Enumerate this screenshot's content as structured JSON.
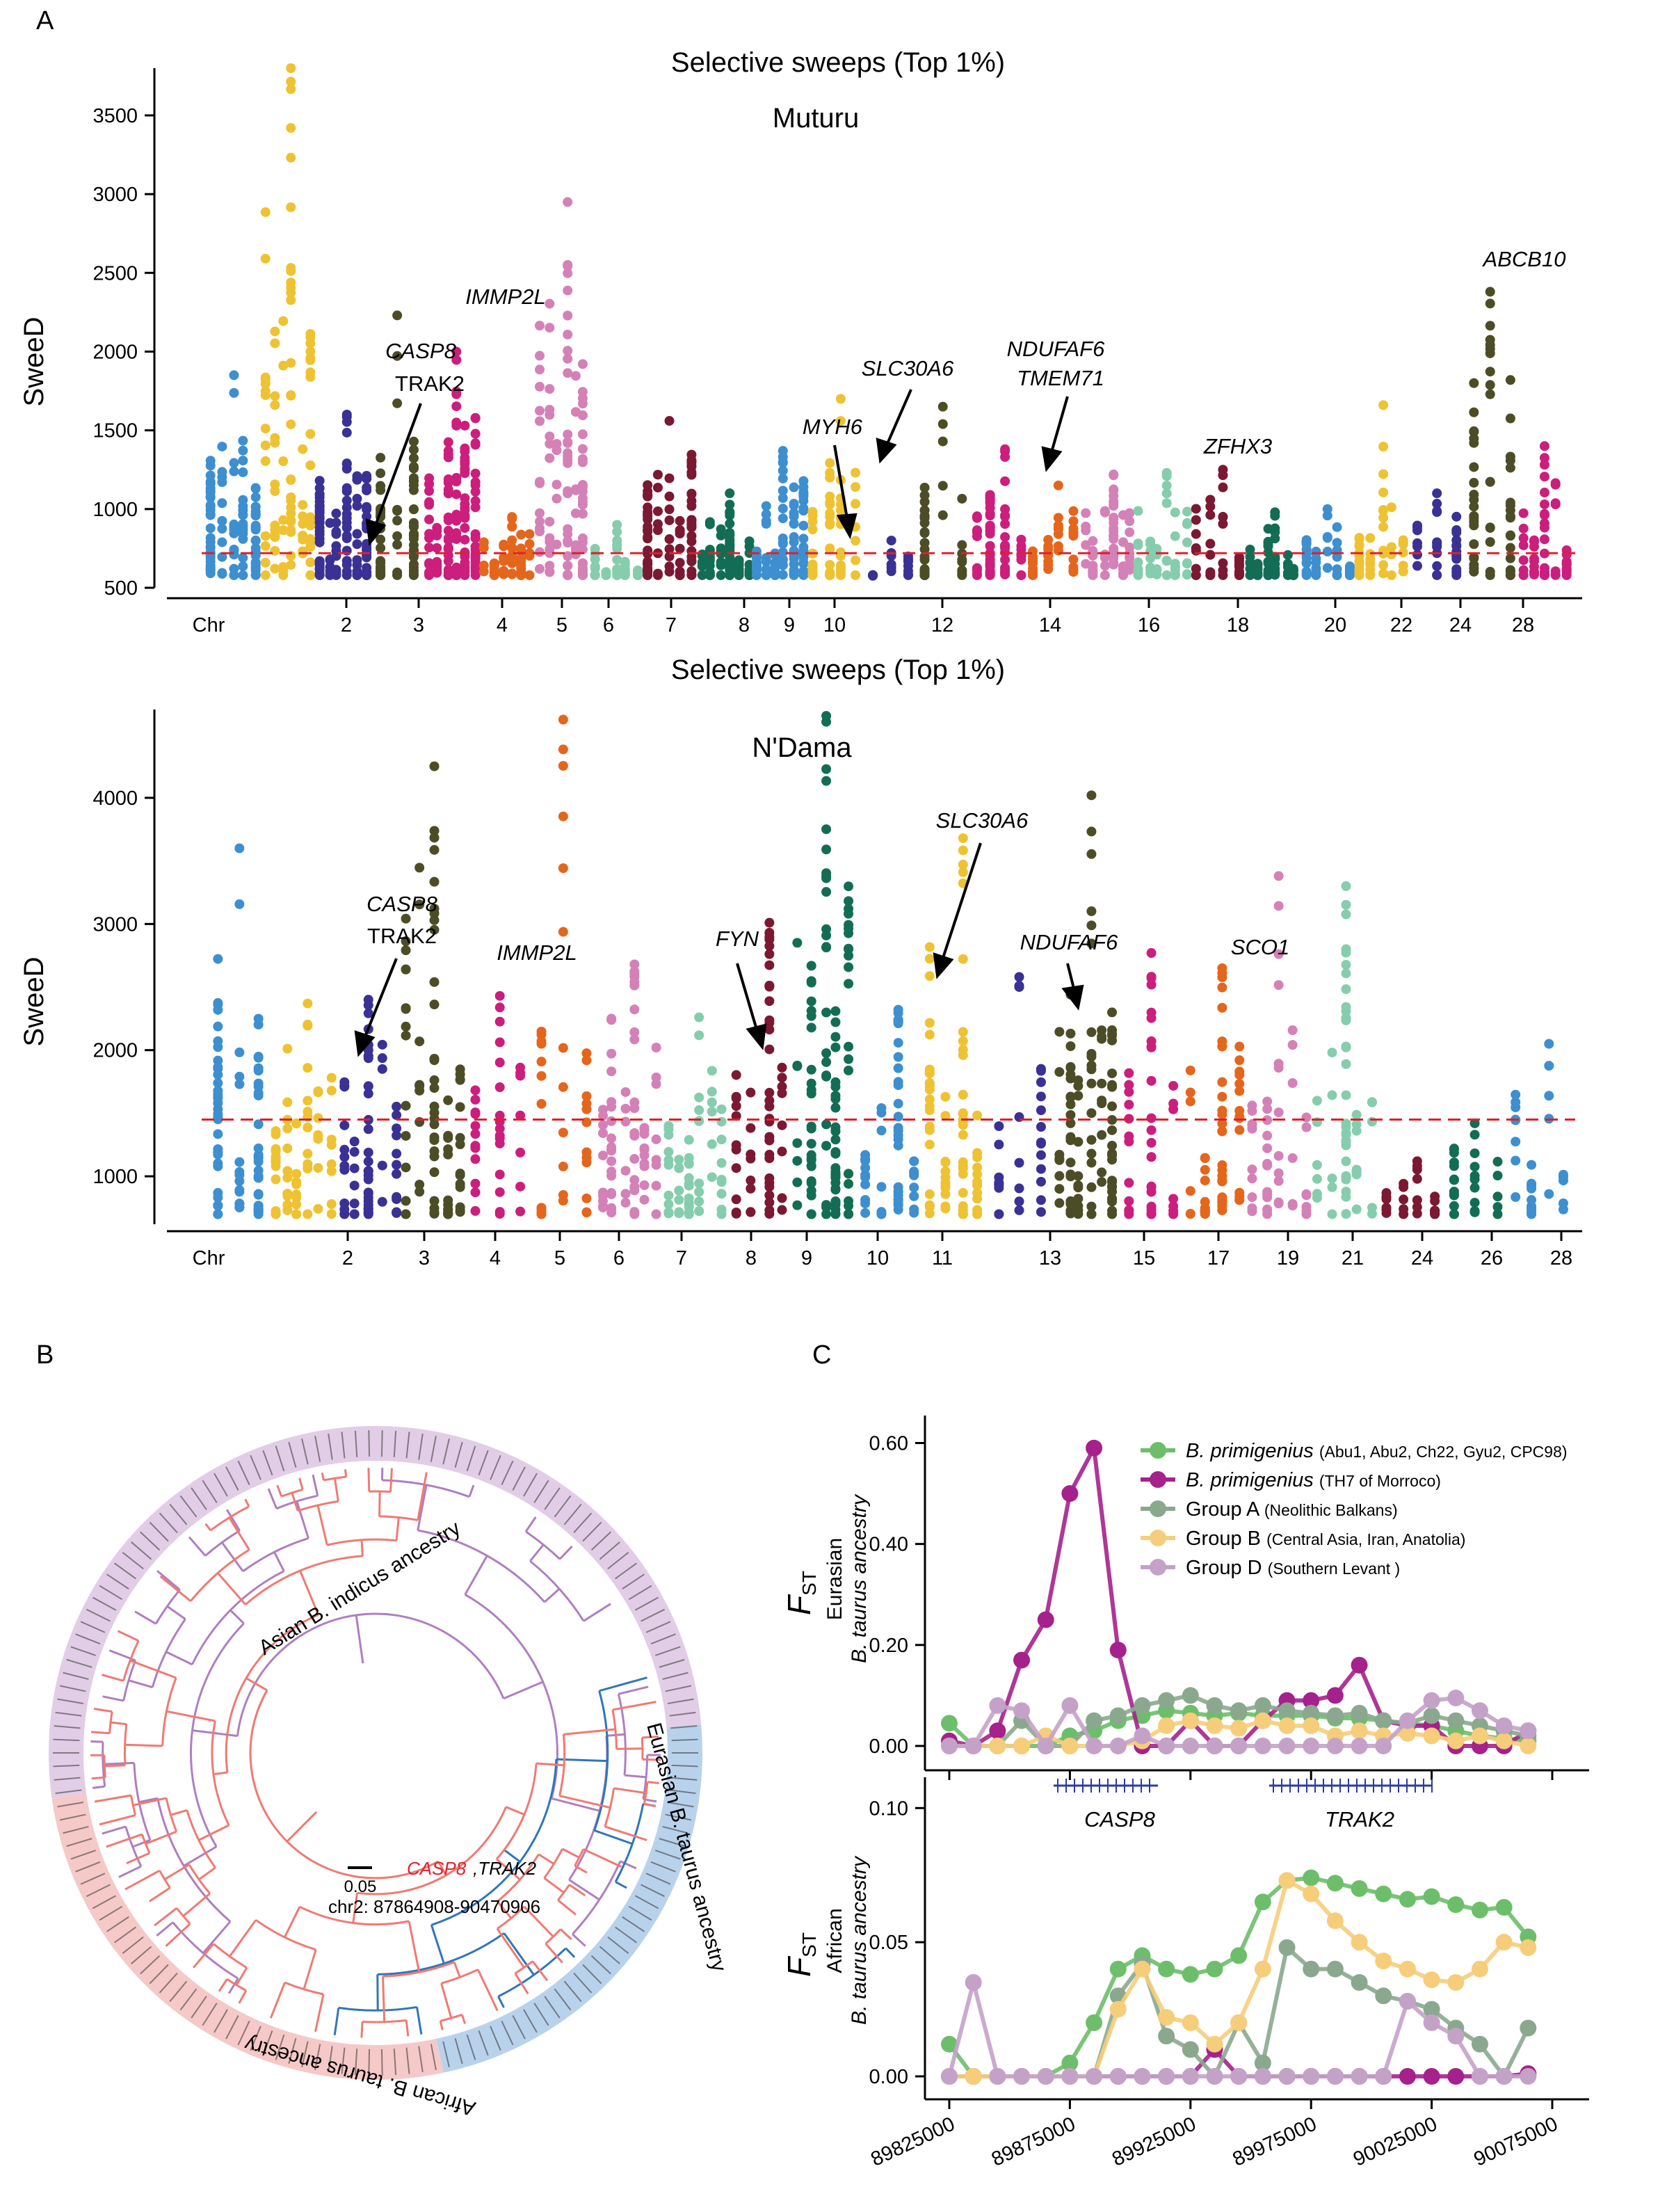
{
  "panels": {
    "a": {
      "label": "A",
      "subplots": [
        {
          "title": "Selective sweeps (Top 1%)",
          "population": "Muturu",
          "ylabel": "SweeD",
          "ylim": [
            500,
            3800
          ],
          "yticks": [
            "500",
            "1000",
            "1500",
            "2000",
            "2500",
            "3000",
            "3500"
          ],
          "threshold": 720,
          "xlabels": [
            "Chr",
            "2",
            "3",
            "4",
            "5",
            "6",
            "7",
            "8",
            "9",
            "10",
            "12",
            "14",
            "16",
            "18",
            "20",
            "22",
            "24",
            "28"
          ],
          "genes": [
            {
              "text": "CASP8",
              "color": "#e0202a"
            },
            {
              "text": "TRAK2",
              "color": "#000000"
            },
            {
              "text": "IMMP2L",
              "color": "#000000"
            },
            {
              "text": "MYH6",
              "color": "#000000"
            },
            {
              "text": "SLC30A6",
              "color": "#e0202a"
            },
            {
              "text": "NDUFAF6",
              "color": "#000000"
            },
            {
              "text": "TMEM71",
              "color": "#000000"
            },
            {
              "text": "ZFHX3",
              "color": "#000000"
            },
            {
              "text": "ABCB10",
              "color": "#000000"
            }
          ],
          "chart_data": {
            "type": "scatter",
            "x": "chromosome position (manhattan)",
            "series_peaks": [
              {
                "chr": "1",
                "max": 1850
              },
              {
                "chr": "2",
                "max": 3800
              },
              {
                "chr": "3",
                "max": 1600
              },
              {
                "chr": "4",
                "max": 2230
              },
              {
                "chr": "5",
                "max": 2000
              },
              {
                "chr": "6",
                "max": 950
              },
              {
                "chr": "7",
                "max": 2950
              },
              {
                "chr": "8",
                "max": 900
              },
              {
                "chr": "9",
                "max": 1560
              },
              {
                "chr": "10",
                "max": 1100
              },
              {
                "chr": "11",
                "max": 1370
              },
              {
                "chr": "12",
                "max": 1700
              },
              {
                "chr": "13",
                "max": 800
              },
              {
                "chr": "14",
                "max": 1650
              },
              {
                "chr": "15",
                "max": 1380
              },
              {
                "chr": "16",
                "max": 1150
              },
              {
                "chr": "17",
                "max": 1220
              },
              {
                "chr": "18",
                "max": 1230
              },
              {
                "chr": "19",
                "max": 1250
              },
              {
                "chr": "20",
                "max": 980
              },
              {
                "chr": "22",
                "max": 1000
              },
              {
                "chr": "24",
                "max": 1660
              },
              {
                "chr": "26",
                "max": 1100
              },
              {
                "chr": "28",
                "max": 2380
              },
              {
                "chr": "29",
                "max": 1400
              }
            ]
          }
        },
        {
          "title": "Selective sweeps (Top 1%)",
          "population": "N'Dama",
          "ylabel": "SweeD",
          "ylim": [
            620,
            4700
          ],
          "yticks": [
            "1000",
            "2000",
            "3000",
            "4000"
          ],
          "threshold": 1450,
          "xlabels": [
            "Chr",
            "2",
            "3",
            "4",
            "5",
            "6",
            "7",
            "8",
            "9",
            "10",
            "11",
            "13",
            "15",
            "17",
            "19",
            "21",
            "24",
            "26",
            "28"
          ],
          "genes": [
            {
              "text": "CASP8",
              "color": "#e0202a"
            },
            {
              "text": "TRAK2",
              "color": "#000000"
            },
            {
              "text": "IMMP2L",
              "color": "#000000"
            },
            {
              "text": "FYN",
              "color": "#000000"
            },
            {
              "text": "SLC30A6",
              "color": "#e0202a"
            },
            {
              "text": "NDUFAF6",
              "color": "#000000"
            },
            {
              "text": "SCO1",
              "color": "#000000"
            }
          ],
          "chart_data": {
            "type": "scatter",
            "x": "chromosome position (manhattan)",
            "series_peaks": [
              {
                "chr": "1",
                "max": 3600
              },
              {
                "chr": "2",
                "max": 2370
              },
              {
                "chr": "3",
                "max": 2400
              },
              {
                "chr": "4",
                "max": 4250
              },
              {
                "chr": "5",
                "max": 2430
              },
              {
                "chr": "6",
                "max": 4620
              },
              {
                "chr": "7",
                "max": 2680
              },
              {
                "chr": "8",
                "max": 2260
              },
              {
                "chr": "9",
                "max": 3010
              },
              {
                "chr": "10",
                "max": 4650
              },
              {
                "chr": "11",
                "max": 2320
              },
              {
                "chr": "12",
                "max": 3680
              },
              {
                "chr": "13",
                "max": 2580
              },
              {
                "chr": "15",
                "max": 4020
              },
              {
                "chr": "17",
                "max": 2770
              },
              {
                "chr": "19",
                "max": 2650
              },
              {
                "chr": "20",
                "max": 3380
              },
              {
                "chr": "21",
                "max": 3300
              },
              {
                "chr": "24",
                "max": 1120
              },
              {
                "chr": "26",
                "max": 1420
              },
              {
                "chr": "28",
                "max": 2050
              }
            ]
          }
        }
      ]
    },
    "b": {
      "label": "B",
      "scale_label": "0.05",
      "region_label": "chr2: 87864908-90470906",
      "highlight_gene_red": "CASP8",
      "highlight_gene_black": ",TRAK2",
      "clades": [
        {
          "name": "Asian B. indicus ancestry",
          "color": "#b07ec0",
          "ring": "#e2cde6"
        },
        {
          "name": "Eurasian B. taurus ancestry",
          "color": "#2f76bb",
          "ring": "#b9d2ec"
        },
        {
          "name": "African B. taurus ancestry",
          "color": "#ef7a73",
          "ring": "#f5c9c7"
        }
      ]
    },
    "c": {
      "label": "C",
      "genes": [
        "CASP8",
        "TRAK2"
      ],
      "legend": [
        {
          "name": "B. primigenius",
          "detail": "(Abu1, Abu2, Ch22, Gyu2, CPC98)",
          "color": "#6dbe6a"
        },
        {
          "name": "B. primigenius",
          "detail": "(TH7 of Morroco)",
          "color": "#a5218c"
        },
        {
          "name": "Group A",
          "detail": "(Neolithic Balkans)",
          "color": "#8aa88e"
        },
        {
          "name": "Group B",
          "detail": "(Central Asia, Iran, Anatolia)",
          "color": "#f6cd7a"
        },
        {
          "name": "Group D",
          "detail": "(Southern Levant )",
          "color": "#c4a2c8"
        }
      ],
      "top": {
        "ylabel_main": "F",
        "ylabel_sub": "ST",
        "ylabel_line1": "Eurasian",
        "ylabel_line2": "B. taurus ancestry",
        "yticks": [
          "0.00",
          "0.20",
          "0.40",
          "0.60"
        ],
        "ylim": [
          0,
          0.62
        ]
      },
      "bottom": {
        "ylabel_main": "F",
        "ylabel_sub": "ST",
        "ylabel_line1": "African",
        "ylabel_line2": "B. taurus ancestry",
        "yticks": [
          "0.00",
          "0.05",
          "0.10"
        ],
        "ylim": [
          0,
          0.105
        ]
      },
      "xticks": [
        "89825000",
        "89875000",
        "89925000",
        "89975000",
        "90025000",
        "90075000"
      ],
      "chart_data": {
        "type": "line",
        "x": [
          89825000,
          89835000,
          89845000,
          89855000,
          89865000,
          89875000,
          89885000,
          89895000,
          89905000,
          89915000,
          89925000,
          89935000,
          89945000,
          89955000,
          89965000,
          89975000,
          89985000,
          89995000,
          90005000,
          90015000,
          90025000,
          90035000,
          90045000,
          90055000,
          90065000
        ],
        "top_series": [
          {
            "name": "B. primigenius (Abu1, Abu2, Ch22, Gyu2, CPC98)",
            "values": [
              0.045,
              0.0,
              0.0,
              0.0,
              0.0,
              0.02,
              0.03,
              0.05,
              0.06,
              0.07,
              0.065,
              0.06,
              0.065,
              0.06,
              0.06,
              0.06,
              0.055,
              0.055,
              0.05,
              0.045,
              0.04,
              0.03,
              0.02,
              0.015,
              0.01
            ]
          },
          {
            "name": "B. primigenius (TH7 of Morroco)",
            "values": [
              0.01,
              0.0,
              0.03,
              0.17,
              0.25,
              0.5,
              0.59,
              0.19,
              0.0,
              0.0,
              0.05,
              0.0,
              0.0,
              0.05,
              0.09,
              0.09,
              0.1,
              0.16,
              0.05,
              0.04,
              0.04,
              0.0,
              0.0,
              0.0,
              0.03
            ]
          },
          {
            "name": "Group A (Neolithic Balkans)",
            "values": [
              0.0,
              0.0,
              0.0,
              0.05,
              0.0,
              0.0,
              0.05,
              0.06,
              0.08,
              0.09,
              0.1,
              0.08,
              0.07,
              0.08,
              0.07,
              0.065,
              0.06,
              0.065,
              0.05,
              0.045,
              0.06,
              0.05,
              0.04,
              0.03,
              0.02
            ]
          },
          {
            "name": "Group B (Central Asia, Iran, Anatolia)",
            "values": [
              0.0,
              0.0,
              0.0,
              0.0,
              0.02,
              0.0,
              0.0,
              0.0,
              0.01,
              0.04,
              0.05,
              0.04,
              0.035,
              0.05,
              0.04,
              0.04,
              0.02,
              0.03,
              0.02,
              0.025,
              0.02,
              0.01,
              0.02,
              0.01,
              0.0
            ]
          },
          {
            "name": "Group D (Southern Levant )",
            "values": [
              0.0,
              0.0,
              0.08,
              0.07,
              0.0,
              0.08,
              0.0,
              0.0,
              0.02,
              0.0,
              0.0,
              0.0,
              0.0,
              0.0,
              0.0,
              0.0,
              0.0,
              0.0,
              0.0,
              0.05,
              0.09,
              0.095,
              0.07,
              0.04,
              0.03
            ]
          }
        ],
        "bottom_series": [
          {
            "name": "B. primigenius (Abu1, Abu2, Ch22, Gyu2, CPC98)",
            "values": [
              0.012,
              0.0,
              0.0,
              0.0,
              0.0,
              0.005,
              0.02,
              0.04,
              0.045,
              0.04,
              0.038,
              0.04,
              0.045,
              0.065,
              0.073,
              0.074,
              0.072,
              0.07,
              0.068,
              0.066,
              0.067,
              0.064,
              0.062,
              0.063,
              0.052
            ]
          },
          {
            "name": "B. primigenius (TH7 of Morroco)",
            "values": [
              0.0,
              0.0,
              0.0,
              0.0,
              0.0,
              0.0,
              0.0,
              0.0,
              0.0,
              0.0,
              0.0,
              0.01,
              0.0,
              0.0,
              0.0,
              0.0,
              0.0,
              0.0,
              0.0,
              0.0,
              0.0,
              0.0,
              0.0,
              0.0,
              0.001
            ]
          },
          {
            "name": "Group A (Neolithic Balkans)",
            "values": [
              0.0,
              0.0,
              0.0,
              0.0,
              0.0,
              0.0,
              0.0,
              0.03,
              0.042,
              0.015,
              0.01,
              0.0,
              0.02,
              0.005,
              0.048,
              0.04,
              0.04,
              0.035,
              0.03,
              0.028,
              0.025,
              0.018,
              0.012,
              0.0,
              0.018
            ]
          },
          {
            "name": "Group B (Central Asia, Iran, Anatolia)",
            "values": [
              0.0,
              0.0,
              0.0,
              0.0,
              0.0,
              0.0,
              0.0,
              0.025,
              0.04,
              0.022,
              0.02,
              0.012,
              0.02,
              0.04,
              0.073,
              0.068,
              0.058,
              0.05,
              0.043,
              0.04,
              0.036,
              0.035,
              0.04,
              0.05,
              0.048
            ]
          },
          {
            "name": "Group D (Southern Levant )",
            "values": [
              0.0,
              0.035,
              0.0,
              0.0,
              0.0,
              0.0,
              0.0,
              0.0,
              0.0,
              0.0,
              0.0,
              0.0,
              0.0,
              0.0,
              0.0,
              0.0,
              0.0,
              0.0,
              0.0,
              0.028,
              0.02,
              0.015,
              0.0,
              0.0,
              0.0
            ]
          }
        ]
      }
    }
  }
}
